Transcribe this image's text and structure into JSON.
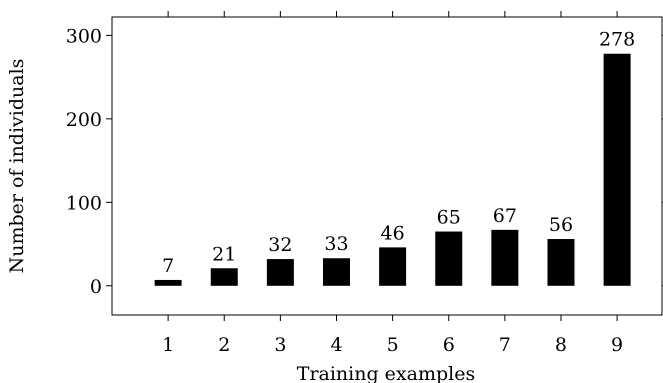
{
  "chart_data": {
    "type": "bar",
    "categories": [
      "1",
      "2",
      "3",
      "4",
      "5",
      "6",
      "7",
      "8",
      "9"
    ],
    "values": [
      7,
      21,
      32,
      33,
      46,
      65,
      67,
      56,
      278
    ],
    "data_labels": [
      "7",
      "21",
      "32",
      "33",
      "46",
      "65",
      "67",
      "56",
      "278"
    ],
    "x_ticks": [
      "1",
      "2",
      "3",
      "4",
      "5",
      "6",
      "7",
      "8",
      "9"
    ],
    "y_ticks": [
      0,
      100,
      200,
      300
    ],
    "y_tick_labels": [
      "0",
      "100",
      "200",
      "300"
    ],
    "xlabel": "Training examples",
    "ylabel": "Number of individuals",
    "title": "",
    "ylim": [
      -35,
      322
    ],
    "xlim": [
      0,
      9.8
    ],
    "grid": false,
    "legend": "none",
    "bar_color": "#000000"
  }
}
